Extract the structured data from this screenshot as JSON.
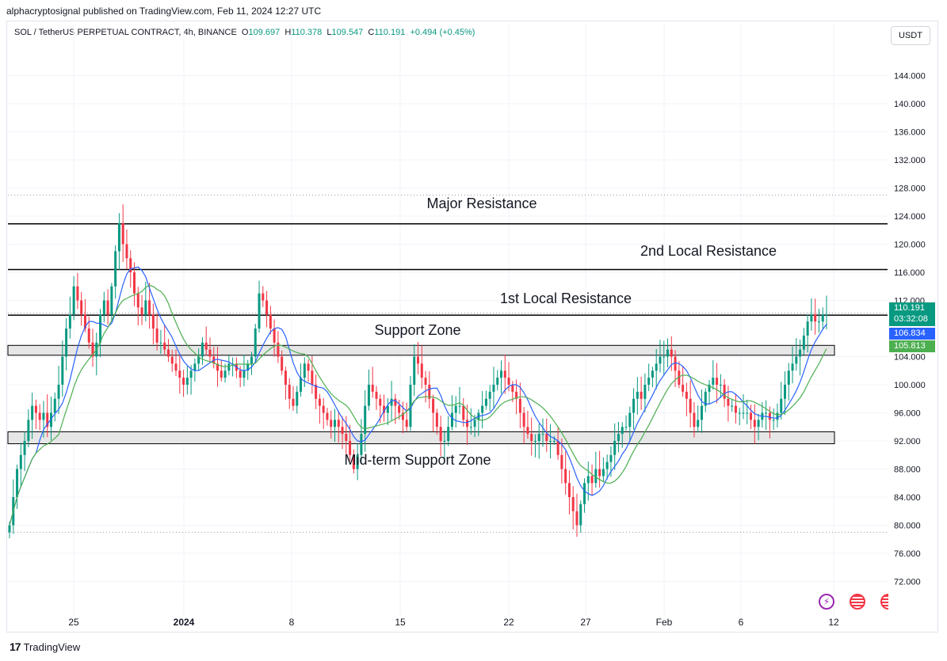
{
  "header": {
    "published": "alphacryptosignal published on TradingView.com, Feb 11, 2024 12:27 UTC"
  },
  "symbol": {
    "name": "SOL / TetherUS PERPETUAL CONTRACT, 4h, BINANCE",
    "open_label": "O",
    "open": "109.697",
    "high_label": "H",
    "high": "110.378",
    "low_label": "L",
    "low": "109.547",
    "close_label": "C",
    "close": "110.191",
    "change": "+0.494 (+0.45%)"
  },
  "currency_button": "USDT",
  "price_tags": {
    "last": "110.191",
    "countdown": "03:32:08",
    "ma1": "106.834",
    "ma2": "105.813",
    "last_color": "#089981",
    "ma1_color": "#2962ff",
    "ma2_color": "#4caf50"
  },
  "footer": {
    "brand": "TradingView",
    "logo_text": "17"
  },
  "icons": [
    "lightning-icon",
    "us-flag-icon",
    "us-flag-icon"
  ],
  "chart_data": {
    "type": "candlestick",
    "y_ticks": [
      "144.000",
      "140.000",
      "136.000",
      "132.000",
      "128.000",
      "124.000",
      "120.000",
      "116.000",
      "112.000",
      "104.000",
      "100.000",
      "96.000",
      "92.000",
      "88.000",
      "84.000",
      "80.000",
      "76.000",
      "72.000"
    ],
    "x_ticks": [
      "25",
      "2024",
      "8",
      "15",
      "22",
      "27",
      "Feb",
      "6",
      "12"
    ],
    "ylim": [
      68,
      148
    ],
    "colors": {
      "up": "#089981",
      "down": "#f23645",
      "ma_fast": "#2962ff",
      "ma_slow": "#4caf50",
      "level": "#000000",
      "zone_fill": "#e6e6e6"
    },
    "annotations": [
      {
        "label": "Major Resistance",
        "type": "line",
        "y": 122.9
      },
      {
        "label": "2nd Local Resistance",
        "type": "line",
        "y": 116.4
      },
      {
        "label": "1st Local Resistance",
        "type": "line",
        "y": 109.9
      },
      {
        "label": "Support Zone",
        "type": "zone",
        "y": [
          104.2,
          105.6
        ]
      },
      {
        "label": "Mid-term Support Zone",
        "type": "zone",
        "y": [
          91.6,
          93.3
        ]
      }
    ],
    "dotted_levels": [
      127.0,
      110.2,
      79.0
    ],
    "close_series": [
      80,
      84,
      88,
      90,
      92,
      95,
      97,
      96,
      95,
      96,
      94,
      96,
      98,
      100,
      104,
      108,
      110,
      114,
      112,
      110,
      108,
      106,
      104,
      106,
      110,
      112,
      110,
      114,
      119,
      123,
      120,
      118,
      116,
      113,
      111,
      110,
      112,
      110,
      108,
      106,
      106,
      105,
      104,
      103,
      102,
      101,
      100,
      101,
      102,
      103,
      104,
      106,
      105,
      104,
      103,
      102,
      101,
      102,
      103,
      103,
      102,
      101,
      102,
      103,
      104,
      108,
      113,
      112,
      110,
      108,
      106,
      104,
      102,
      100,
      98,
      97,
      99,
      101,
      103,
      102,
      100,
      98,
      97,
      96,
      95,
      94,
      95,
      94,
      93,
      92,
      90,
      88,
      90,
      93,
      97,
      100,
      99,
      98,
      97,
      96,
      97,
      98,
      97,
      96,
      95,
      94,
      100,
      104,
      103,
      101,
      100,
      98,
      96,
      94,
      92,
      92,
      94,
      96,
      97,
      97,
      95,
      94,
      94,
      95,
      96,
      97,
      98,
      99,
      100,
      101,
      102,
      101,
      100,
      99,
      98,
      96,
      94,
      93,
      92,
      92,
      93,
      93,
      92,
      92,
      92,
      90,
      88,
      86,
      84,
      82,
      80,
      83,
      86,
      87,
      86,
      88,
      87,
      88,
      89,
      90,
      92,
      93,
      94,
      94,
      96,
      98,
      99,
      98,
      100,
      101,
      102,
      103,
      104,
      104,
      105,
      104,
      102,
      100,
      99,
      98,
      96,
      94,
      95,
      97,
      99,
      100,
      101,
      100,
      100,
      98,
      97,
      97,
      96,
      96,
      96,
      96,
      95,
      94,
      95,
      96,
      96,
      95,
      95,
      96,
      98,
      100,
      102,
      103,
      104,
      105,
      107,
      109,
      110,
      109,
      109,
      110,
      110
    ]
  }
}
